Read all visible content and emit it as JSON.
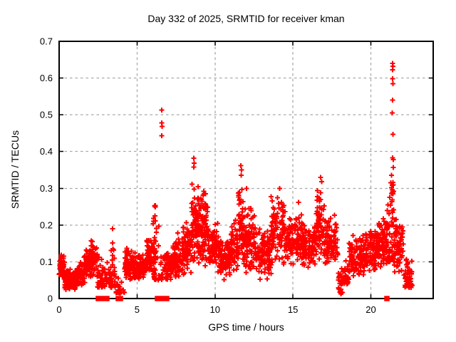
{
  "window": {
    "background": "#ffffff",
    "kind": "gnuplot-style scatter plot"
  },
  "chart_data": {
    "type": "scatter",
    "title": "Day 332 of 2025, SRMTID for receiver kman",
    "xlabel": "GPS time / hours",
    "ylabel": "SRMTID / TECUs",
    "xlim": [
      0,
      24
    ],
    "ylim": [
      0,
      0.7
    ],
    "xticks": [
      0,
      5,
      10,
      15,
      20
    ],
    "yticks": [
      0,
      0.1,
      0.2,
      0.3,
      0.4,
      0.5,
      0.6,
      0.7
    ],
    "x_tick_labels": [
      "0",
      "5",
      "10",
      "15",
      "20"
    ],
    "y_tick_labels": [
      "0",
      "0.1",
      "0.2",
      "0.3",
      "0.4",
      "0.5",
      "0.6",
      "0.7"
    ],
    "grid": true,
    "grid_style": {
      "color": "#a8a8a8",
      "dash": [
        3.5,
        4
      ],
      "width": 1.3
    },
    "border_color": "#000000",
    "legend": "none",
    "marker": {
      "shape": "plus",
      "color": "#ff0000",
      "size": 7,
      "stroke": 2
    },
    "zero_marker": {
      "shape": "filled-square",
      "color": "#ff0000",
      "size": 7.5
    },
    "series_name": "SRMTID",
    "density_segments_comment": "dense 30-s epoch scatter summarized as [t0_hours, t1_hours, n_points, y_min_TECU, y_max_TECU, distribution(mid|low)]",
    "density_segments": [
      [
        0.0,
        0.35,
        55,
        0.05,
        0.13,
        "mid"
      ],
      [
        0.35,
        1.15,
        115,
        0.02,
        0.085,
        "mid"
      ],
      [
        1.15,
        1.55,
        55,
        0.03,
        0.1,
        "mid"
      ],
      [
        1.55,
        1.95,
        60,
        0.04,
        0.14,
        "mid"
      ],
      [
        1.95,
        2.45,
        65,
        0.05,
        0.165,
        "mid"
      ],
      [
        2.45,
        2.95,
        45,
        0.03,
        0.12,
        "low"
      ],
      [
        2.95,
        3.3,
        15,
        0.04,
        0.1,
        "low"
      ],
      [
        3.3,
        3.6,
        35,
        0.03,
        0.185,
        "low"
      ],
      [
        3.6,
        4.2,
        25,
        0.015,
        0.075,
        "low"
      ],
      [
        4.2,
        5.0,
        90,
        0.04,
        0.145,
        "mid"
      ],
      [
        5.0,
        5.6,
        70,
        0.05,
        0.125,
        "mid"
      ],
      [
        5.6,
        6.0,
        55,
        0.06,
        0.175,
        "mid"
      ],
      [
        6.0,
        6.25,
        45,
        0.05,
        0.315,
        "low"
      ],
      [
        6.3,
        6.75,
        18,
        0.05,
        0.25,
        "low"
      ],
      [
        6.75,
        7.3,
        60,
        0.045,
        0.135,
        "mid"
      ],
      [
        7.3,
        7.9,
        70,
        0.05,
        0.175,
        "mid"
      ],
      [
        7.9,
        8.5,
        80,
        0.06,
        0.21,
        "mid"
      ],
      [
        8.5,
        9.0,
        80,
        0.08,
        0.33,
        "mid"
      ],
      [
        9.0,
        9.6,
        85,
        0.08,
        0.3,
        "mid"
      ],
      [
        9.6,
        10.3,
        85,
        0.07,
        0.21,
        "mid"
      ],
      [
        10.3,
        11.0,
        85,
        0.05,
        0.17,
        "mid"
      ],
      [
        11.0,
        11.5,
        60,
        0.07,
        0.22,
        "mid"
      ],
      [
        11.5,
        11.8,
        45,
        0.09,
        0.31,
        "mid"
      ],
      [
        11.8,
        12.6,
        95,
        0.06,
        0.27,
        "mid"
      ],
      [
        12.6,
        13.6,
        110,
        0.045,
        0.2,
        "mid"
      ],
      [
        13.6,
        14.5,
        100,
        0.09,
        0.285,
        "mid"
      ],
      [
        14.5,
        15.6,
        120,
        0.09,
        0.235,
        "mid"
      ],
      [
        15.6,
        16.5,
        100,
        0.075,
        0.21,
        "mid"
      ],
      [
        16.5,
        17.0,
        60,
        0.09,
        0.315,
        "mid"
      ],
      [
        17.0,
        17.9,
        95,
        0.08,
        0.235,
        "mid"
      ],
      [
        17.9,
        18.2,
        25,
        0.015,
        0.14,
        "low"
      ],
      [
        18.2,
        18.6,
        30,
        0.04,
        0.12,
        "low"
      ],
      [
        18.6,
        19.6,
        100,
        0.05,
        0.175,
        "mid"
      ],
      [
        19.6,
        20.4,
        95,
        0.07,
        0.2,
        "mid"
      ],
      [
        20.4,
        21.05,
        85,
        0.08,
        0.235,
        "mid"
      ],
      [
        21.05,
        21.5,
        55,
        0.1,
        0.32,
        "low"
      ],
      [
        21.3,
        21.5,
        12,
        0.28,
        0.4,
        "low"
      ],
      [
        21.5,
        22.1,
        70,
        0.06,
        0.22,
        "mid"
      ],
      [
        22.1,
        22.65,
        55,
        0.03,
        0.145,
        "low"
      ]
    ],
    "outlier_points": [
      [
        3.42,
        0.19
      ],
      [
        4.1,
        0.023
      ],
      [
        6.58,
        0.513
      ],
      [
        6.58,
        0.478
      ],
      [
        6.6,
        0.468
      ],
      [
        6.59,
        0.443
      ],
      [
        7.62,
        0.178
      ],
      [
        8.63,
        0.382
      ],
      [
        8.66,
        0.368
      ],
      [
        8.64,
        0.358
      ],
      [
        9.28,
        0.292
      ],
      [
        9.4,
        0.285
      ],
      [
        11.66,
        0.362
      ],
      [
        11.7,
        0.35
      ],
      [
        11.68,
        0.335
      ],
      [
        12.02,
        0.3
      ],
      [
        14.15,
        0.3
      ],
      [
        15.35,
        0.262
      ],
      [
        16.78,
        0.33
      ],
      [
        16.85,
        0.318
      ],
      [
        18.07,
        0.013
      ],
      [
        18.08,
        0.025
      ],
      [
        18.1,
        0.04
      ],
      [
        18.12,
        0.055
      ],
      [
        21.4,
        0.64
      ],
      [
        21.41,
        0.632
      ],
      [
        21.39,
        0.622
      ],
      [
        21.4,
        0.598
      ],
      [
        21.42,
        0.585
      ],
      [
        21.4,
        0.54
      ],
      [
        21.38,
        0.505
      ],
      [
        21.41,
        0.447
      ],
      [
        21.39,
        0.383
      ],
      [
        21.44,
        0.378
      ]
    ],
    "zero_value_squares_x_hours": [
      2.52,
      2.62,
      2.72,
      2.82,
      2.97,
      3.06,
      3.8,
      3.92,
      6.31,
      6.44,
      6.78,
      6.9,
      21.03
    ]
  }
}
